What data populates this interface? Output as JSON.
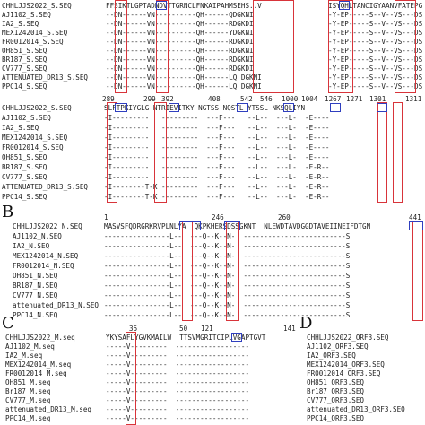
{
  "panel_letters": [
    "B",
    "C",
    "D"
  ],
  "panelA": {
    "top_names": [
      "CHHLJJS2022_S.SEQ",
      "AJ1102_S.SEQ",
      "IA2_S.SEQ",
      "MEX1242014_S.SEQ",
      "FR0012014_S.SEQ",
      "OH851_S.SEQ",
      "BR187_S.SEQ",
      "CV777_S.SEQ",
      "ATTENUATED_DR13_S.SEQ",
      "PPC14_S.SEQ"
    ],
    "top_seq1": [
      "FFSIKTLGPTADNDVTTGRNCLFNKAIPAHMSEHS..V",
      "--DN------VN----------QH------QDGKNI",
      "--DN------VN----------QH------RDGKDI",
      "--DN------VN----------QH------YDGKNI",
      "--DN------VN----------QH------RDGKDI",
      "--DN------VN----------QH------RDGKNI",
      "--DN------VN----------QH------RDGKNI",
      "--DN------VN----------QH------RDGKDI",
      "--DN------VN----------QH------LQ.DGKNI",
      "--DN------VN----------QH------LQ.DGKNI"
    ],
    "top_seq2": [
      "ISYQHLTANCIGYAANVFATEPG",
      "-Y-EP-----S--V--VS---DS",
      "-Y-EP-----S--V--VS---DS",
      "-Y-EP-----S--V--VS---DS",
      "-Y-EP-----S--V--VS---DS",
      "-Y-EP-----S--V--VS---DS",
      "-Y-EP-----S--V--VS---DS",
      "-Y-EP-----S--V--VS---DS",
      "-Y-EP-----S--V--VS---DS",
      "-Y-EP-----S--V--VS---DS"
    ],
    "positions": [
      "289",
      "299",
      "392",
      "408",
      "542",
      "546",
      "1000",
      "1004",
      "1267",
      "1271",
      "1301",
      "1311"
    ],
    "bottom_names": [
      "CHHLJJS2022_S.SEQ",
      "AJ1102_S.SEQ",
      "IA2_S.SEQ",
      "MEX1242014_S.SEQ",
      "FR0012014_S.SEQ",
      "OH851_S.SEQ",
      "BR187_S.SEQ",
      "CV777_S.SEQ",
      "ATTENUATED_DR13_S.SEQ",
      "PPC14_S.SEQ"
    ],
    "bottom_seq": [
      "SLFTPKIYGLG NTRIEVITKY NGTSS NQSTL YTSSL NKSQLIYN",
      "-I---------   ---------  ---F---   --L--  ---L-  -E----",
      "-I---------   ---------  ---F---   --L--  ---L-  -E----",
      "-I---------   ---------  ---F---   --L--  ---L-  -E----",
      "-I---------   ---------  ---F---   --L--  ---L-  -E----",
      "-I---------   ---------  ---F---   --L--  ---L-  -E----",
      "-I---------   ---------  ---F---   --L--  ---L-  -E-R--",
      "-I---------   ---------  ---F---   --L--  ---L-  -E-R--",
      "-I--------T-K ---------  ---F---   --L--  ---L-  -E-R--",
      "-I--------T-K ---------  ---F---   --L--  ---L-  -E-R--"
    ]
  },
  "panelB": {
    "positions": [
      "1",
      "246",
      "260",
      "441"
    ],
    "names": [
      "CHHLJJS2022_N.SEQ",
      "AJ1102_N.SEQ",
      "IA2_N.SEQ",
      "MEX1242014_N.SEQ",
      "FR0012014_N.SEQ",
      "OH851_N.SEQ",
      "BR187_N.SEQ",
      "CV777_N.SEQ",
      "attenuated_DR13_N.SEQ",
      "PPC14_N.SEQ"
    ],
    "seq": [
      "MASVSFQDRGRKRVPLNLYA  QKPKHERSDSSGKNT  NLEWDTAVDGGDTAVEIINEIFDTGN",
      "----------------L--  ---Q--K--N-  -------------------------S",
      "----------------L--  ---Q--K--N-  -------------------------S",
      "----------------L--  ---Q--K--N-  -------------------------S",
      "----------------L--  ---Q--K--N-  -------------------------S",
      "----------------L--  ---Q--K--N-  -------------------------S",
      "----------------L--  ---Q--K--N-  -------------------------S",
      "----------------L--  ---Q--K--N-  -------------------------S",
      "----------------L--  ---Q--K--N-  -------------------------S",
      "----------------L--  ---Q--K--N-  -------------------------S"
    ]
  },
  "panelC": {
    "positions": [
      "35",
      "50",
      "121",
      "141"
    ],
    "names": [
      "CHHLJJS2022_M.seq",
      "AJ1102_M.seq",
      "IA2_M.seq",
      "MEX1242014_M.seq",
      "FR0012014_M.seq",
      "OH851_M.seq",
      "Br187_M.seq",
      "CV777_M.seq",
      "attenuated_DR13_M.seq",
      "PPC14_M.seq"
    ],
    "seq": [
      "YKYSAFLYGVKMAILW  TTSVMGRITCIPLVGAPTGVT",
      "-----V---------  ------------------",
      "-----V---------  ------------------",
      "-----V---------  ------------------",
      "-----V---------  ------------------",
      "-----V---------  ------------------",
      "-----V---------  ------------------",
      "-----V---------  ------------------",
      "-----V---------  ------------------",
      "-----V---------  ------------------"
    ]
  },
  "panelD": {
    "names": [
      "CHHLJJS2022_ORF3.SEQ",
      "AJ1102_ORF3.SEQ",
      "IA2_ORF3.SEQ",
      "MEX1242014_ORF3.SEQ",
      "FR0012014_ORF3.SEQ",
      "OH851_ORF3.SEQ",
      "Br187_ORF3.SEQ",
      "CV777_ORF3.SEQ",
      "attenuated_DR13_ORF3.SEQ",
      "PPC14_ORF3.SEQ"
    ]
  }
}
